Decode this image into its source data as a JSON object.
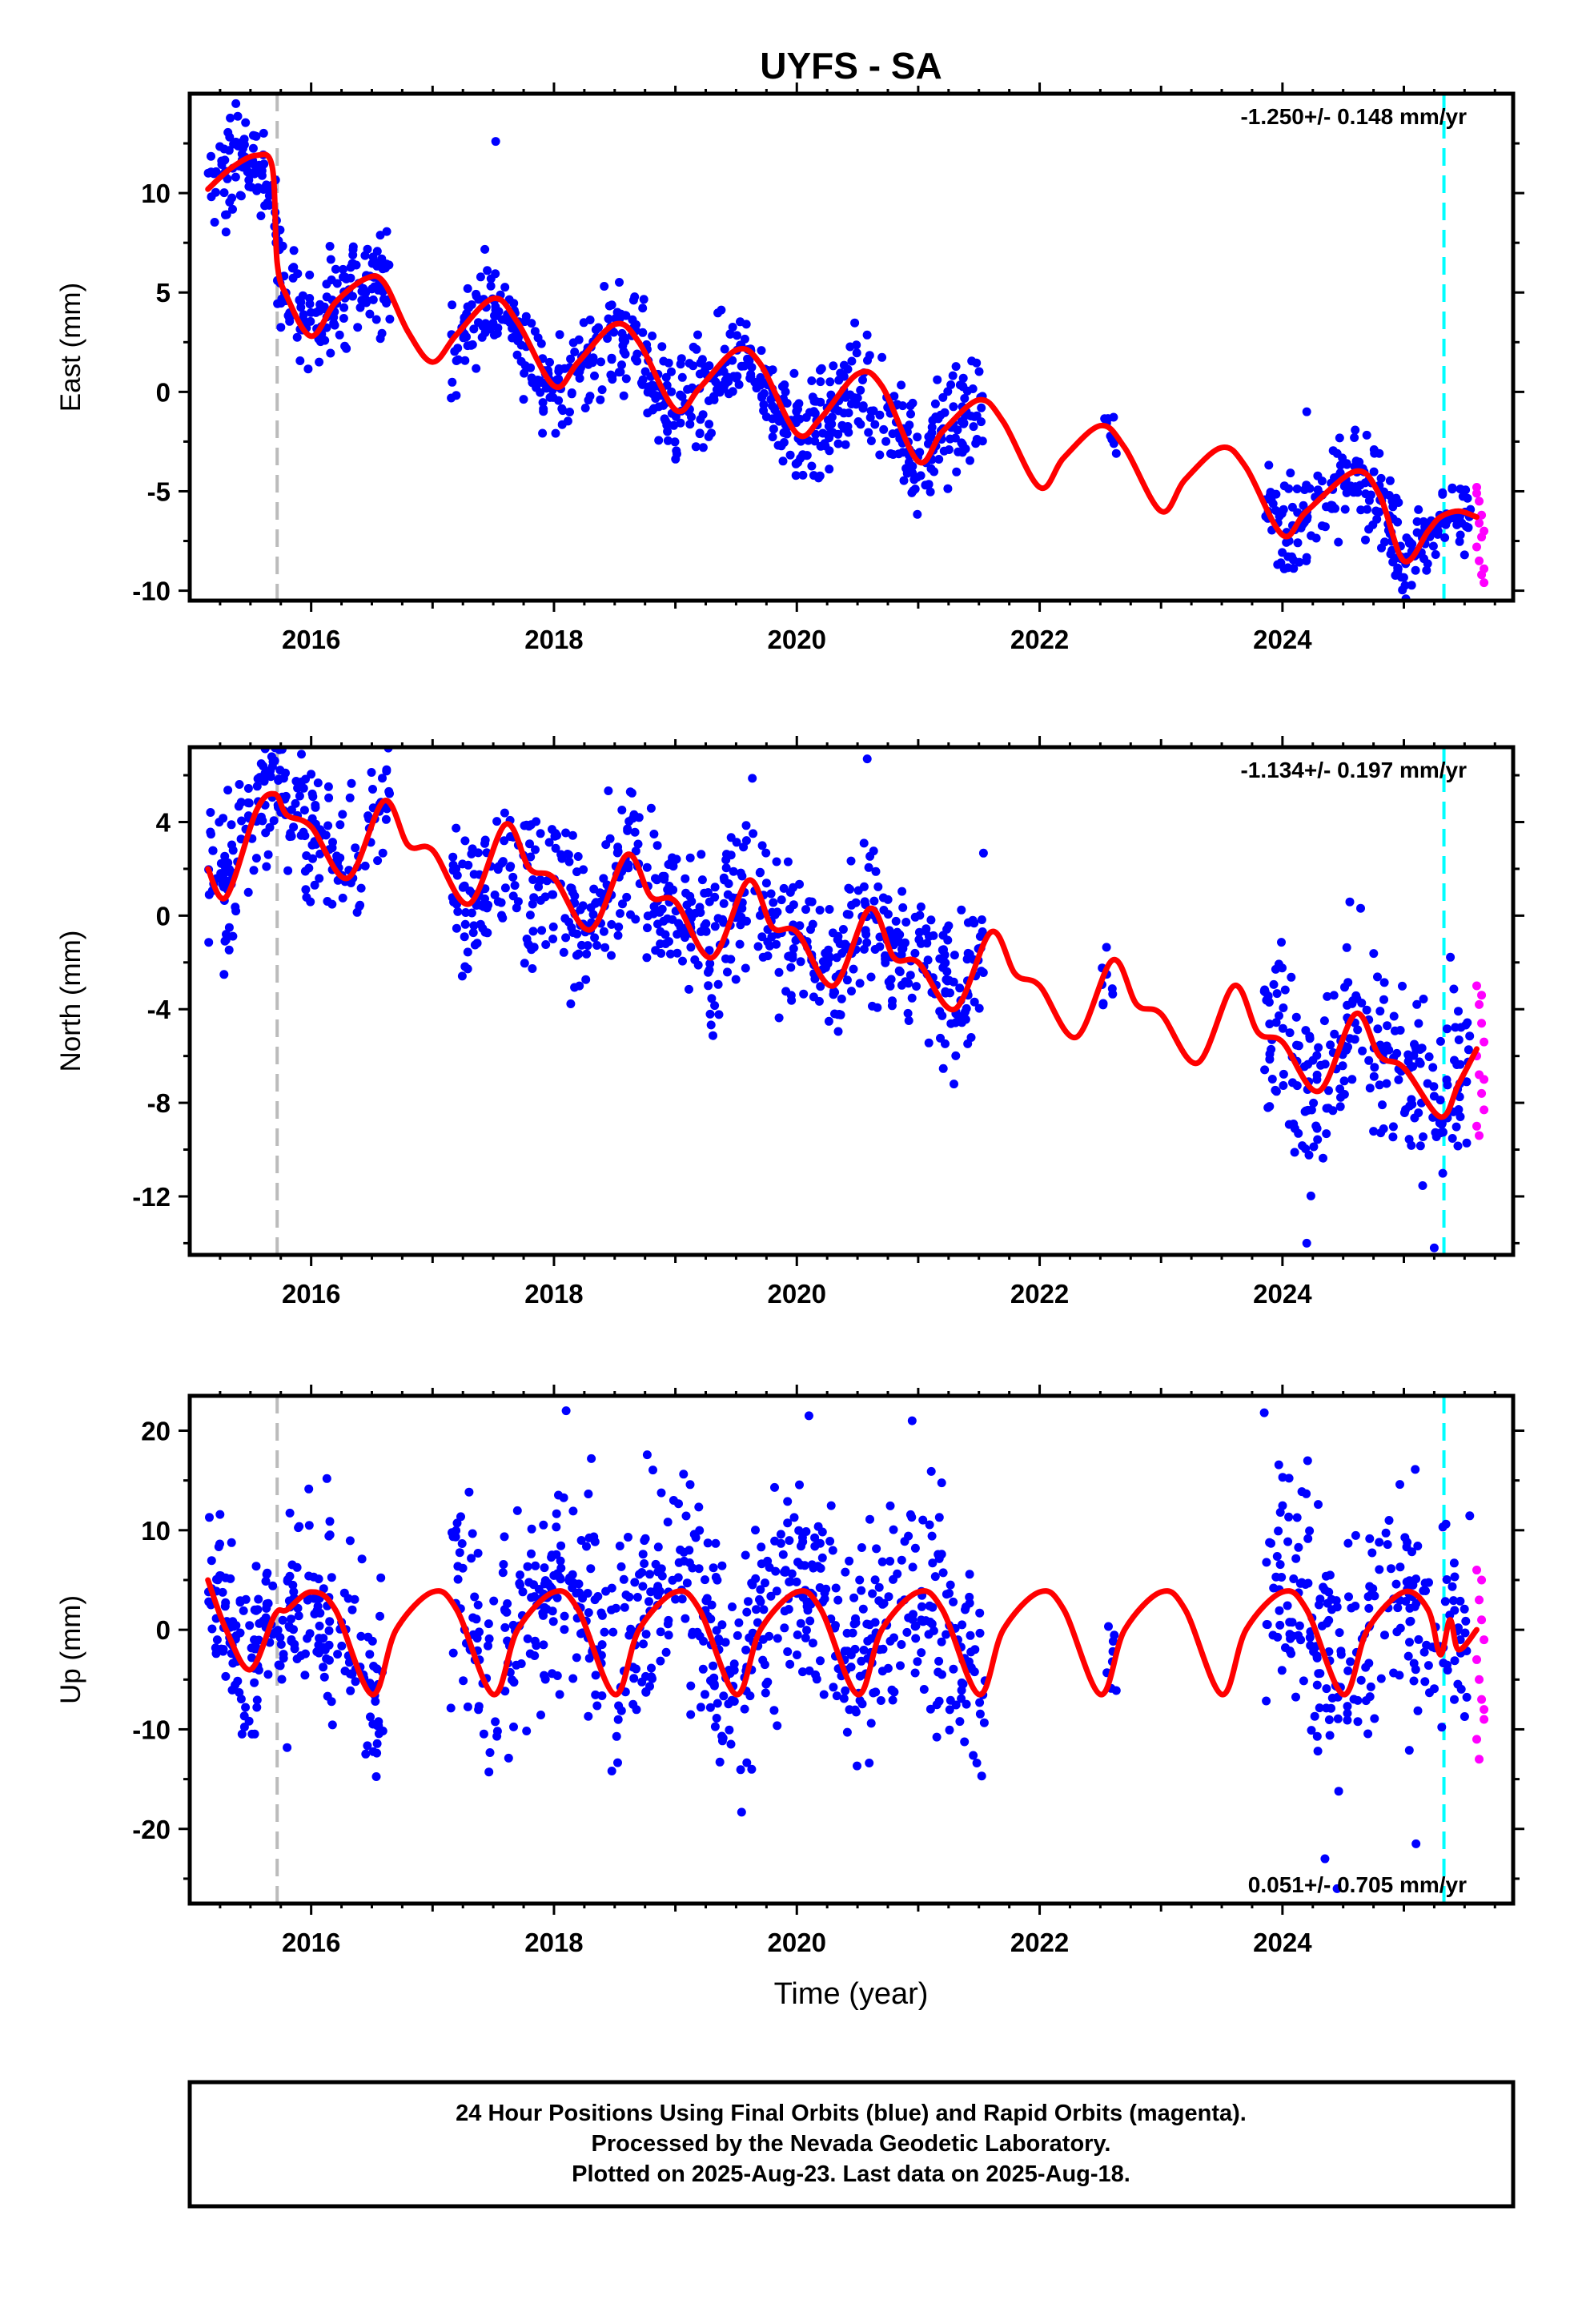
{
  "title": "UYFS - SA",
  "xlabel": "Time (year)",
  "footer": [
    "24 Hour Positions Using Final Orbits (blue) and Rapid Orbits (magenta).",
    "Processed by the Nevada Geodetic Laboratory.",
    "Plotted on 2025-Aug-23. Last data on 2025-Aug-18."
  ],
  "colors": {
    "final_orbits": "#0000ff",
    "rapid_orbits": "#ff00ff",
    "model": "#ff0000",
    "equipment_change": "#bbbbbb",
    "cutoff": "#00ffff"
  },
  "chart_data": [
    {
      "type": "scatter",
      "ylabel": "East (mm)",
      "rate": "-1.250+/- 0.148 mm/yr",
      "xlim": [
        2015.0,
        2025.9
      ],
      "ylim": [
        -10.5,
        15
      ],
      "xticks": [
        2016,
        2018,
        2020,
        2022,
        2024
      ],
      "yticks": [
        -10,
        -5,
        0,
        5,
        10
      ],
      "grid": false,
      "vlines": [
        {
          "x": 2015.72,
          "kind": "equipment_change"
        },
        {
          "x": 2025.33,
          "kind": "cutoff"
        }
      ],
      "model_curve": {
        "x": [
          2015.15,
          2015.35,
          2015.55,
          2015.68,
          2015.72,
          2015.8,
          2016.0,
          2016.2,
          2016.45,
          2016.6,
          2016.8,
          2017.0,
          2017.2,
          2017.5,
          2017.7,
          2018.0,
          2018.2,
          2018.5,
          2018.7,
          2019.0,
          2019.2,
          2019.5,
          2019.7,
          2020.0,
          2020.2,
          2020.5,
          2020.7,
          2021.0,
          2021.2,
          2021.5,
          2021.7,
          2022.0,
          2022.2,
          2022.5,
          2022.7,
          2023.0,
          2023.2,
          2023.5,
          2023.7,
          2024.0,
          2024.2,
          2024.6,
          2024.8,
          2025.0,
          2025.2,
          2025.3,
          2025.45,
          2025.6
        ],
        "y": [
          10.2,
          11.3,
          11.9,
          11.3,
          6.5,
          4.8,
          2.8,
          4.5,
          5.7,
          5.5,
          3.0,
          1.5,
          2.9,
          4.7,
          3.5,
          0.3,
          1.5,
          3.4,
          2.5,
          -0.9,
          0.2,
          2.1,
          1.4,
          -2.1,
          -1.3,
          0.9,
          0.3,
          -3.5,
          -2.0,
          -0.4,
          -1.5,
          -4.8,
          -3.3,
          -1.7,
          -2.8,
          -6.0,
          -4.4,
          -2.8,
          -3.8,
          -7.2,
          -6.0,
          -4.0,
          -5.2,
          -8.5,
          -7.0,
          -6.3,
          -6.0,
          -6.3
        ]
      },
      "clusters": [
        {
          "x0": 2015.15,
          "x1": 2015.72,
          "center": 11.0,
          "spread": 1.2,
          "n": 90
        },
        {
          "x0": 2015.72,
          "x1": 2016.65,
          "center": 4.8,
          "spread": 1.3,
          "n": 140
        },
        {
          "x0": 2017.15,
          "x1": 2017.95,
          "center": 3.5,
          "spread": 1.2,
          "n": 110
        },
        {
          "x0": 2017.95,
          "x1": 2018.95,
          "center": 1.8,
          "spread": 1.3,
          "n": 150
        },
        {
          "x0": 2018.95,
          "x1": 2019.95,
          "center": 0.5,
          "spread": 1.3,
          "n": 150
        },
        {
          "x0": 2019.95,
          "x1": 2020.95,
          "center": -0.8,
          "spread": 1.3,
          "n": 150
        },
        {
          "x0": 2020.95,
          "x1": 2021.55,
          "center": -1.8,
          "spread": 1.3,
          "n": 90
        },
        {
          "x0": 2022.5,
          "x1": 2022.65,
          "center": -1.5,
          "spread": 0.7,
          "n": 8
        },
        {
          "x0": 2023.85,
          "x1": 2024.95,
          "center": -5.0,
          "spread": 1.4,
          "n": 150
        },
        {
          "x0": 2024.95,
          "x1": 2025.55,
          "center": -6.9,
          "spread": 1.0,
          "n": 80
        }
      ],
      "rapid": {
        "x": [
          2025.6,
          2025.62,
          2025.64,
          2025.66,
          2025.6,
          2025.62,
          2025.64,
          2025.66,
          2025.6,
          2025.62,
          2025.64,
          2025.66
        ],
        "y": [
          -4.8,
          -5.5,
          -6.2,
          -7.0,
          -7.8,
          -8.5,
          -9.2,
          -9.6,
          -5.1,
          -6.6,
          -7.3,
          -8.9
        ]
      },
      "outliers": [
        {
          "x": 2017.52,
          "y": 12.6
        },
        {
          "x": 2015.38,
          "y": 14.5
        },
        {
          "x": 2024.2,
          "y": -1.0
        }
      ]
    },
    {
      "type": "scatter",
      "ylabel": "North (mm)",
      "rate": "-1.134+/- 0.197 mm/yr",
      "xlim": [
        2015.0,
        2025.9
      ],
      "ylim": [
        -14.5,
        7.2
      ],
      "xticks": [
        2016,
        2018,
        2020,
        2022,
        2024
      ],
      "yticks": [
        -12,
        -8,
        -4,
        0,
        4
      ],
      "grid": false,
      "vlines": [
        {
          "x": 2015.72,
          "kind": "equipment_change"
        },
        {
          "x": 2025.33,
          "kind": "cutoff"
        }
      ],
      "model_curve": {
        "x": [
          2015.15,
          2015.3,
          2015.55,
          2015.7,
          2015.8,
          2016.0,
          2016.3,
          2016.6,
          2016.8,
          2017.0,
          2017.3,
          2017.6,
          2017.8,
          2018.0,
          2018.3,
          2018.6,
          2018.8,
          2019.0,
          2019.3,
          2019.6,
          2019.8,
          2020.0,
          2020.3,
          2020.6,
          2020.8,
          2021.0,
          2021.3,
          2021.6,
          2021.8,
          2022.0,
          2022.3,
          2022.6,
          2022.8,
          2023.0,
          2023.3,
          2023.6,
          2023.8,
          2024.0,
          2024.3,
          2024.6,
          2024.8,
          2025.0,
          2025.3,
          2025.45,
          2025.6
        ],
        "y": [
          2.0,
          0.8,
          4.5,
          5.2,
          4.3,
          3.8,
          1.6,
          4.9,
          3.0,
          2.8,
          0.5,
          3.9,
          2.0,
          1.6,
          -0.6,
          2.6,
          0.8,
          0.6,
          -1.8,
          1.5,
          -0.5,
          -0.7,
          -3.0,
          0.3,
          -1.8,
          -2.0,
          -4.0,
          -0.7,
          -2.5,
          -3.0,
          -5.2,
          -1.9,
          -3.8,
          -4.2,
          -6.3,
          -3.0,
          -5.0,
          -5.4,
          -7.5,
          -4.2,
          -6.0,
          -6.5,
          -8.6,
          -7.2,
          -5.7
        ]
      },
      "clusters": [
        {
          "x0": 2015.15,
          "x1": 2015.72,
          "center": 3.5,
          "spread": 1.4,
          "n": 90
        },
        {
          "x0": 2015.72,
          "x1": 2016.65,
          "center": 3.3,
          "spread": 1.4,
          "n": 120
        },
        {
          "x0": 2017.15,
          "x1": 2017.95,
          "center": 1.5,
          "spread": 1.6,
          "n": 110
        },
        {
          "x0": 2017.95,
          "x1": 2018.95,
          "center": 0.5,
          "spread": 1.6,
          "n": 150
        },
        {
          "x0": 2018.95,
          "x1": 2019.95,
          "center": 0.3,
          "spread": 1.6,
          "n": 150
        },
        {
          "x0": 2019.95,
          "x1": 2020.95,
          "center": -1.0,
          "spread": 1.6,
          "n": 150
        },
        {
          "x0": 2020.95,
          "x1": 2021.55,
          "center": -2.6,
          "spread": 1.6,
          "n": 90
        },
        {
          "x0": 2022.5,
          "x1": 2022.65,
          "center": -2.8,
          "spread": 1.2,
          "n": 8
        },
        {
          "x0": 2023.85,
          "x1": 2024.95,
          "center": -6.2,
          "spread": 1.9,
          "n": 150
        },
        {
          "x0": 2024.95,
          "x1": 2025.55,
          "center": -7.4,
          "spread": 2.0,
          "n": 80
        }
      ],
      "rapid": {
        "x": [
          2025.6,
          2025.62,
          2025.64,
          2025.66,
          2025.6,
          2025.62,
          2025.64,
          2025.66,
          2025.6,
          2025.62,
          2025.64,
          2025.66
        ],
        "y": [
          -3.0,
          -3.8,
          -4.6,
          -5.4,
          -6.0,
          -6.8,
          -7.6,
          -8.3,
          -9.0,
          -9.4,
          -3.4,
          -7.0
        ]
      },
      "outliers": [
        {
          "x": 2015.92,
          "y": 6.9
        },
        {
          "x": 2020.58,
          "y": 6.7
        },
        {
          "x": 2024.2,
          "y": -14.0
        },
        {
          "x": 2025.25,
          "y": -14.2
        }
      ]
    },
    {
      "type": "scatter",
      "ylabel": "Up (mm)",
      "rate": "0.051+/- 0.705 mm/yr",
      "xlim": [
        2015.0,
        2025.9
      ],
      "ylim": [
        -27.5,
        23.5
      ],
      "xticks": [
        2016,
        2018,
        2020,
        2022,
        2024
      ],
      "yticks": [
        -20,
        -10,
        0,
        10,
        20
      ],
      "grid": false,
      "vlines": [
        {
          "x": 2015.72,
          "kind": "equipment_change"
        },
        {
          "x": 2025.33,
          "kind": "cutoff"
        }
      ],
      "model_curve": {
        "x": [
          2015.15,
          2015.3,
          2015.5,
          2015.7,
          2015.8,
          2016.0,
          2016.2,
          2016.5,
          2016.7,
          2017.0,
          2017.2,
          2017.5,
          2017.7,
          2018.0,
          2018.2,
          2018.5,
          2018.7,
          2019.0,
          2019.2,
          2019.5,
          2019.7,
          2020.0,
          2020.2,
          2020.5,
          2020.7,
          2021.0,
          2021.2,
          2021.5,
          2021.7,
          2022.0,
          2022.2,
          2022.5,
          2022.7,
          2023.0,
          2023.2,
          2023.5,
          2023.7,
          2024.0,
          2024.2,
          2024.5,
          2024.7,
          2025.0,
          2025.2,
          2025.3,
          2025.38,
          2025.45,
          2025.6
        ],
        "y": [
          5.0,
          0.0,
          -4.0,
          1.5,
          2.0,
          3.8,
          2.0,
          -6.5,
          0.0,
          3.8,
          2.0,
          -6.5,
          0.0,
          3.8,
          2.0,
          -6.5,
          0.0,
          3.8,
          2.0,
          -6.5,
          0.0,
          3.8,
          2.0,
          -6.5,
          0.0,
          3.8,
          2.0,
          -6.5,
          0.0,
          3.8,
          2.0,
          -6.5,
          0.0,
          3.8,
          2.0,
          -6.5,
          0.0,
          3.8,
          2.0,
          -6.5,
          0.0,
          3.8,
          2.0,
          -2.5,
          1.0,
          -2.0,
          0.0
        ]
      },
      "clusters": [
        {
          "x0": 2015.15,
          "x1": 2015.72,
          "center": 0.0,
          "spread": 4.0,
          "n": 100
        },
        {
          "x0": 2015.72,
          "x1": 2016.6,
          "center": -1.0,
          "spread": 5.5,
          "n": 130
        },
        {
          "x0": 2017.15,
          "x1": 2017.95,
          "center": -2.0,
          "spread": 5.5,
          "n": 110
        },
        {
          "x0": 2017.95,
          "x1": 2018.95,
          "center": 0.0,
          "spread": 5.5,
          "n": 150
        },
        {
          "x0": 2018.95,
          "x1": 2019.95,
          "center": -1.0,
          "spread": 5.5,
          "n": 150
        },
        {
          "x0": 2019.95,
          "x1": 2020.95,
          "center": 0.0,
          "spread": 5.5,
          "n": 150
        },
        {
          "x0": 2020.95,
          "x1": 2021.55,
          "center": -1.0,
          "spread": 5.5,
          "n": 90
        },
        {
          "x0": 2022.5,
          "x1": 2022.65,
          "center": -4.0,
          "spread": 4.0,
          "n": 8
        },
        {
          "x0": 2023.85,
          "x1": 2024.95,
          "center": 0.0,
          "spread": 6.0,
          "n": 150
        },
        {
          "x0": 2024.95,
          "x1": 2025.55,
          "center": -1.0,
          "spread": 5.5,
          "n": 80
        }
      ],
      "rapid": {
        "x": [
          2025.6,
          2025.62,
          2025.64,
          2025.66,
          2025.6,
          2025.62,
          2025.64,
          2025.66,
          2025.6,
          2025.62,
          2025.64,
          2025.66
        ],
        "y": [
          6.0,
          3.0,
          1.0,
          -1.0,
          -3.0,
          -5.0,
          -7.0,
          -9.0,
          -11.0,
          -13.0,
          5.0,
          -8.0
        ]
      },
      "outliers": [
        {
          "x": 2018.1,
          "y": 22.0
        },
        {
          "x": 2023.85,
          "y": 21.8
        },
        {
          "x": 2024.35,
          "y": -23.0
        },
        {
          "x": 2024.45,
          "y": -26.0
        },
        {
          "x": 2025.1,
          "y": -21.5
        },
        {
          "x": 2020.1,
          "y": 21.5
        },
        {
          "x": 2020.95,
          "y": 21.0
        }
      ]
    }
  ]
}
